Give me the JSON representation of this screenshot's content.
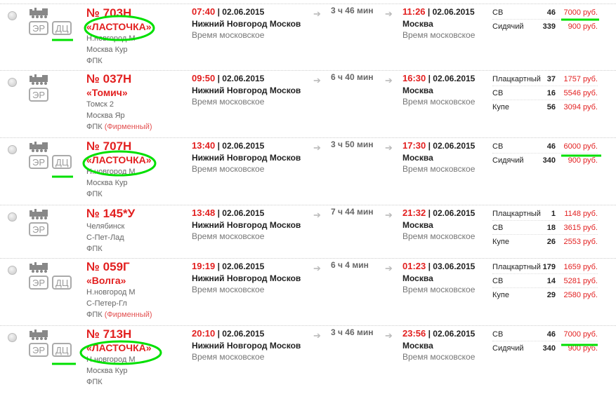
{
  "colors": {
    "accent": "#e21f1f",
    "annotation": "#00e000"
  },
  "icons": {
    "select": "radio-icon",
    "train": "locomotive-icon",
    "arrow": "arrow-right-icon"
  },
  "trains": [
    {
      "number": "№ 703Н",
      "name": "«ЛАСТОЧКА»",
      "from": "Н.новгород М",
      "to": "Москва Кур",
      "carrier": "ФПК",
      "brand": "",
      "badges": [
        "ЭР",
        "ДЦ"
      ],
      "dep_time": "07:40",
      "dep_date": "| 02.06.2015",
      "dep_city": "Нижний Новгород Москов",
      "dep_tz": "Время московское",
      "duration": "3 ч 46 мин",
      "arr_time": "11:26",
      "arr_date": "| 02.06.2015",
      "arr_city": "Москва",
      "arr_tz": "Время московское",
      "seats": [
        {
          "type": "СВ",
          "count": "46",
          "price": "7000 руб."
        },
        {
          "type": "Сидячий",
          "count": "339",
          "price": "900 руб."
        }
      ]
    },
    {
      "number": "№ 037Н",
      "name": "«Томич»",
      "from": "Томск 2",
      "to": "Москва Яр",
      "carrier": "ФПК",
      "brand": "(Фирменный)",
      "badges": [
        "ЭР"
      ],
      "dep_time": "09:50",
      "dep_date": "| 02.06.2015",
      "dep_city": "Нижний Новгород Москов",
      "dep_tz": "Время московское",
      "duration": "6 ч 40 мин",
      "arr_time": "16:30",
      "arr_date": "| 02.06.2015",
      "arr_city": "Москва",
      "arr_tz": "Время московское",
      "seats": [
        {
          "type": "Плацкартный",
          "count": "37",
          "price": "1757 руб."
        },
        {
          "type": "СВ",
          "count": "16",
          "price": "5546 руб."
        },
        {
          "type": "Купе",
          "count": "56",
          "price": "3094 руб."
        }
      ]
    },
    {
      "number": "№ 707Н",
      "name": "«ЛАСТОЧКА»",
      "from": "Н.новгород М",
      "to": "Москва Кур",
      "carrier": "ФПК",
      "brand": "",
      "badges": [
        "ЭР",
        "ДЦ"
      ],
      "dep_time": "13:40",
      "dep_date": "| 02.06.2015",
      "dep_city": "Нижний Новгород Москов",
      "dep_tz": "Время московское",
      "duration": "3 ч 50 мин",
      "arr_time": "17:30",
      "arr_date": "| 02.06.2015",
      "arr_city": "Москва",
      "arr_tz": "Время московское",
      "seats": [
        {
          "type": "СВ",
          "count": "46",
          "price": "6000 руб."
        },
        {
          "type": "Сидячий",
          "count": "340",
          "price": "900 руб."
        }
      ]
    },
    {
      "number": "№ 145*У",
      "name": "",
      "from": "Челябинск",
      "to": "С-Пет-Лад",
      "carrier": "ФПК",
      "brand": "",
      "badges": [
        "ЭР"
      ],
      "dep_time": "13:48",
      "dep_date": "| 02.06.2015",
      "dep_city": "Нижний Новгород Москов",
      "dep_tz": "Время московское",
      "duration": "7 ч 44 мин",
      "arr_time": "21:32",
      "arr_date": "| 02.06.2015",
      "arr_city": "Москва",
      "arr_tz": "Время московское",
      "seats": [
        {
          "type": "Плацкартный",
          "count": "1",
          "price": "1148 руб."
        },
        {
          "type": "СВ",
          "count": "18",
          "price": "3615 руб."
        },
        {
          "type": "Купе",
          "count": "26",
          "price": "2553 руб."
        }
      ]
    },
    {
      "number": "№ 059Г",
      "name": "«Волга»",
      "from": "Н.новгород М",
      "to": "С-Петер-Гл",
      "carrier": "ФПК",
      "brand": "(Фирменный)",
      "badges": [
        "ЭР",
        "ДЦ"
      ],
      "dep_time": "19:19",
      "dep_date": "| 02.06.2015",
      "dep_city": "Нижний Новгород Москов",
      "dep_tz": "Время московское",
      "duration": "6 ч 4 мин",
      "arr_time": "01:23",
      "arr_date": "| 03.06.2015",
      "arr_city": "Москва",
      "arr_tz": "Время московское",
      "seats": [
        {
          "type": "Плацкартный",
          "count": "179",
          "price": "1659 руб."
        },
        {
          "type": "СВ",
          "count": "14",
          "price": "5281 руб."
        },
        {
          "type": "Купе",
          "count": "29",
          "price": "2580 руб."
        }
      ]
    },
    {
      "number": "№ 713Н",
      "name": "«ЛАСТОЧКА»",
      "from": "Н.новгород М",
      "to": "Москва Кур",
      "carrier": "ФПК",
      "brand": "",
      "badges": [
        "ЭР",
        "ДЦ"
      ],
      "dep_time": "20:10",
      "dep_date": "| 02.06.2015",
      "dep_city": "Нижний Новгород Москов",
      "dep_tz": "Время московское",
      "duration": "3 ч 46 мин",
      "arr_time": "23:56",
      "arr_date": "| 02.06.2015",
      "arr_city": "Москва",
      "arr_tz": "Время московское",
      "seats": [
        {
          "type": "СВ",
          "count": "46",
          "price": "7000 руб."
        },
        {
          "type": "Сидячий",
          "count": "340",
          "price": "900 руб."
        }
      ]
    }
  ]
}
